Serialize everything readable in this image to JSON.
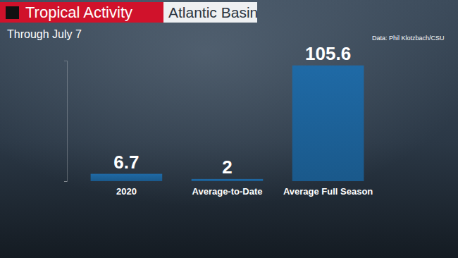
{
  "chart_data": {
    "type": "bar",
    "title": "Tropical Activity",
    "subtitle": "Through July 7",
    "annotations": [
      "Atlantic Basin",
      "Data: Phil Klotzbach/CSU"
    ],
    "categories": [
      "2020",
      "Average-to-Date",
      "Average Full Season"
    ],
    "values": [
      6.7,
      2,
      105.6
    ],
    "color": "#1f6aa6",
    "ylim": [
      0,
      110
    ],
    "yticks": [
      0
    ],
    "grid": false,
    "data_labels": true,
    "tick_labels": "x"
  }
}
